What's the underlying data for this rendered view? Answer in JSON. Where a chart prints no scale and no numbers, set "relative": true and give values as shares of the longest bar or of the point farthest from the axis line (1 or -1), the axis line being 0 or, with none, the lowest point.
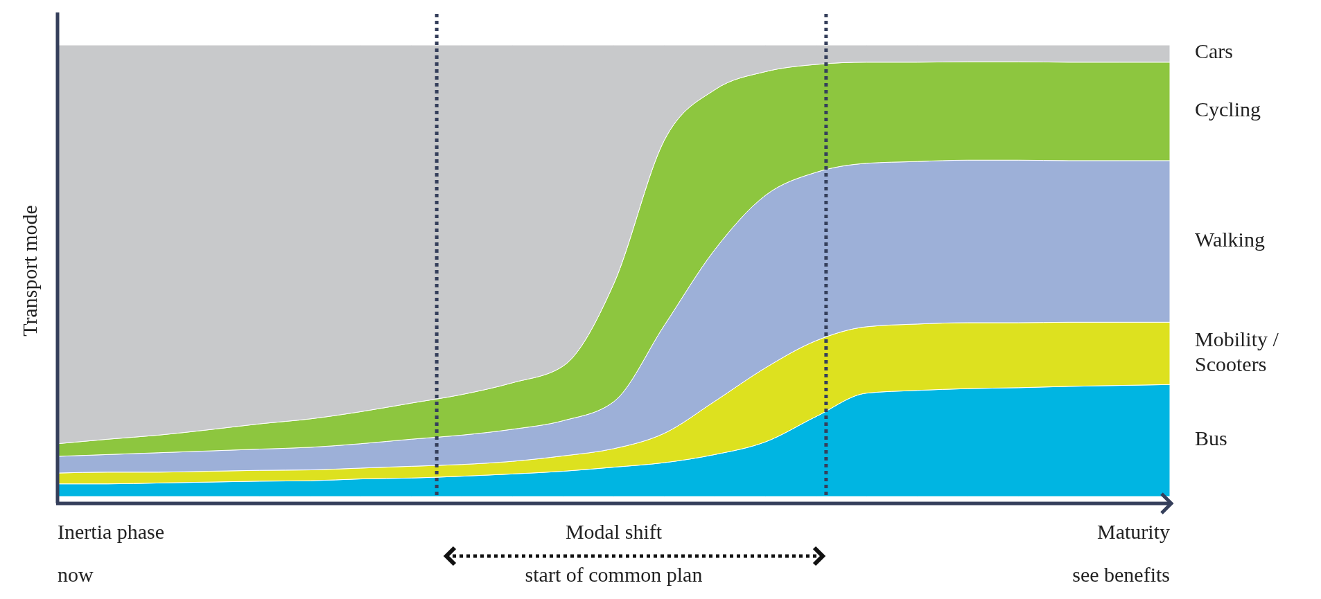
{
  "chart_data": {
    "type": "area",
    "stacked": true,
    "relative": true,
    "ylabel": "Transport mode",
    "categories": [
      null,
      null,
      null,
      null,
      null,
      null,
      null,
      null,
      null,
      null,
      null,
      null,
      null,
      null,
      null,
      null,
      null,
      null,
      null,
      null,
      null,
      null,
      null
    ],
    "series": [
      {
        "name": "Bus",
        "color": "#00b5e2",
        "values": [
          0.028,
          0.028,
          0.03,
          0.032,
          0.034,
          0.035,
          0.039,
          0.041,
          0.045,
          0.05,
          0.056,
          0.065,
          0.075,
          0.093,
          0.121,
          0.177,
          0.229,
          0.235,
          0.239,
          0.241,
          0.244,
          0.246,
          0.248
        ]
      },
      {
        "name": "Mobility / Scooters",
        "color": "#dde11f",
        "values": [
          0.024,
          0.026,
          0.024,
          0.024,
          0.024,
          0.024,
          0.024,
          0.026,
          0.026,
          0.028,
          0.034,
          0.041,
          0.065,
          0.118,
          0.164,
          0.168,
          0.147,
          0.147,
          0.146,
          0.144,
          0.142,
          0.14,
          0.138
        ]
      },
      {
        "name": "Walking",
        "color": "#9db0d8",
        "values": [
          0.037,
          0.039,
          0.043,
          0.045,
          0.047,
          0.05,
          0.054,
          0.06,
          0.065,
          0.071,
          0.078,
          0.104,
          0.239,
          0.336,
          0.382,
          0.373,
          0.362,
          0.36,
          0.36,
          0.36,
          0.358,
          0.358,
          0.358
        ]
      },
      {
        "name": "Cycling",
        "color": "#8dc63f",
        "values": [
          0.028,
          0.034,
          0.039,
          0.047,
          0.056,
          0.063,
          0.071,
          0.08,
          0.09,
          0.103,
          0.121,
          0.261,
          0.41,
          0.354,
          0.274,
          0.239,
          0.224,
          0.22,
          0.218,
          0.218,
          0.218,
          0.218,
          0.218
        ]
      },
      {
        "name": "Cars",
        "color": "#c8c9cb",
        "values": [
          0.883,
          0.873,
          0.864,
          0.852,
          0.839,
          0.828,
          0.812,
          0.793,
          0.774,
          0.748,
          0.711,
          0.529,
          0.211,
          0.099,
          0.059,
          0.043,
          0.038,
          0.038,
          0.037,
          0.037,
          0.038,
          0.038,
          0.038
        ]
      }
    ],
    "annotations": [
      "Inertia phase",
      "Modal shift",
      "Maturity",
      "now",
      "start of common plan",
      "see benefits"
    ]
  }
}
